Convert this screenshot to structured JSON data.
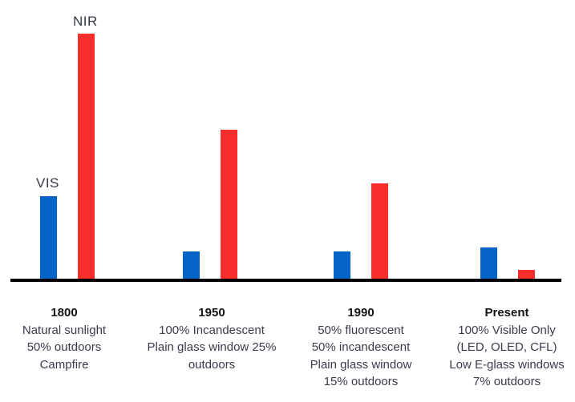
{
  "chart_data": {
    "type": "bar",
    "title": "",
    "categories": [
      "1800",
      "1950",
      "1990",
      "Present"
    ],
    "series": [
      {
        "name": "VIS",
        "color": "#0564C8",
        "values": [
          34,
          11.5,
          11.5,
          13
        ]
      },
      {
        "name": "NIR",
        "color": "#FA2D2D",
        "values": [
          100,
          61,
          39,
          4
        ]
      }
    ],
    "ylim": [
      0,
      100
    ],
    "units": "relative height (NIR 1800 = 100), no y-axis shown",
    "grid": false,
    "legend_position": "text-labels-above-first-group-bars",
    "axis": {
      "baseline_color": "#000000",
      "y_axis_shown": false
    }
  },
  "captions": [
    {
      "title": "1800",
      "lines": [
        "Natural sunlight",
        "50% outdoors",
        "Campfire"
      ]
    },
    {
      "title": "1950",
      "lines": [
        "100% Incandescent",
        "Plain glass window 25%",
        "outdoors"
      ]
    },
    {
      "title": "1990",
      "lines": [
        "50% fluorescent",
        "50% incandescent",
        "Plain glass window",
        "15% outdoors"
      ]
    },
    {
      "title": "Present",
      "lines": [
        "100% Visible Only",
        "(LED, OLED, CFL)",
        "Low E-glass windows",
        "7% outdoors"
      ]
    }
  ]
}
